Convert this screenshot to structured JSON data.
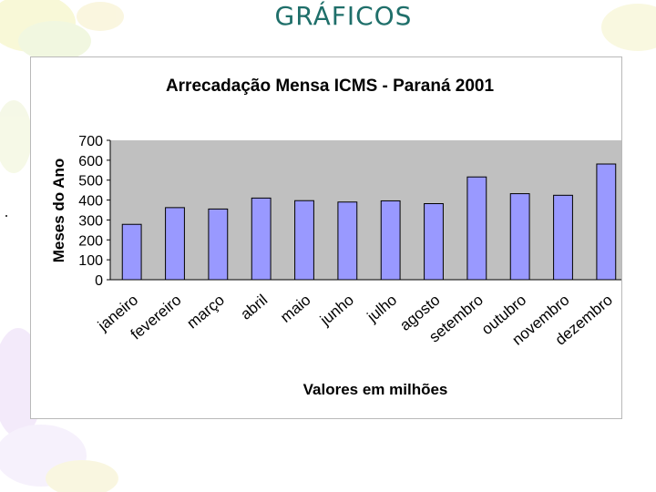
{
  "slide": {
    "title": "GRÁFICOS"
  },
  "colors": {
    "title": "#1f6f6a",
    "plot_background": "#c0c0c0",
    "bar_fill": "#9999ff",
    "bar_stroke": "#000000"
  },
  "chart_data": {
    "type": "bar",
    "title": "Arrecadação Mensa ICMS - Paraná 2001",
    "xlabel": "Valores em milhões",
    "ylabel": "Meses do Ano",
    "categories": [
      "janeiro",
      "fevereiro",
      "março",
      "abril",
      "maio",
      "junho",
      "julho",
      "agosto",
      "setembro",
      "outubro",
      "novembro",
      "dezembro"
    ],
    "values": [
      278,
      362,
      355,
      410,
      397,
      390,
      396,
      382,
      516,
      432,
      424,
      581
    ],
    "ylim": [
      0,
      700
    ],
    "yticks": [
      "0",
      "100",
      "200",
      "300",
      "400",
      "500",
      "600",
      "700"
    ],
    "grid": false,
    "legend": "none"
  }
}
